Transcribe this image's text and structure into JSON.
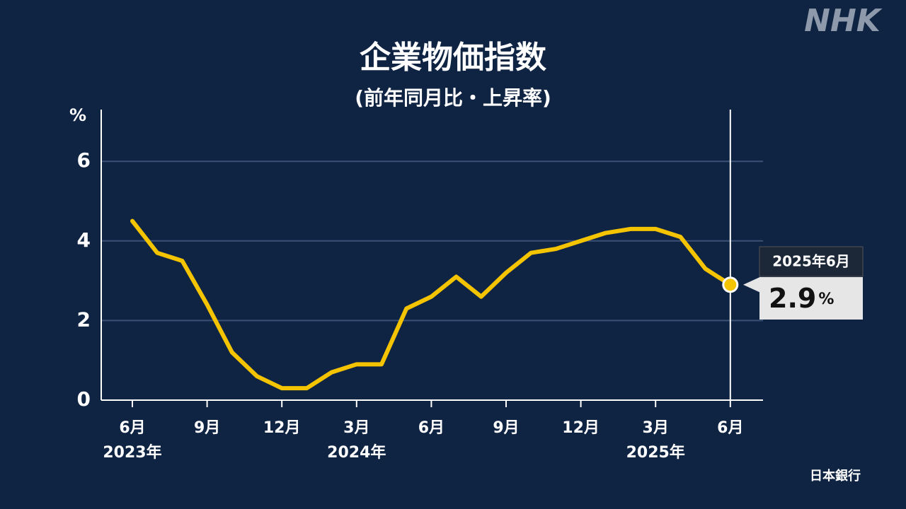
{
  "chart_data": {
    "type": "line",
    "title": "企業物価指数",
    "subtitle": "(前年同月比・上昇率)",
    "y_label": "%",
    "categories": [
      "6月",
      null,
      null,
      "9月",
      null,
      null,
      "12月",
      null,
      null,
      "3月",
      null,
      null,
      "6月",
      null,
      null,
      "9月",
      null,
      null,
      "12月",
      null,
      null,
      "3月",
      null,
      null,
      "6月"
    ],
    "year_labels": [
      "2023年",
      null,
      null,
      null,
      null,
      null,
      null,
      null,
      null,
      "2024年",
      null,
      null,
      null,
      null,
      null,
      null,
      null,
      null,
      null,
      null,
      null,
      "2025年",
      null,
      null,
      null
    ],
    "values": [
      4.5,
      3.7,
      3.5,
      2.4,
      1.2,
      0.6,
      0.3,
      0.3,
      0.7,
      0.9,
      0.9,
      2.3,
      2.6,
      3.1,
      2.6,
      3.2,
      3.7,
      3.8,
      4.0,
      4.2,
      4.3,
      4.3,
      4.1,
      3.3,
      2.9
    ],
    "color": "#f5c400",
    "ylim": [
      0,
      7.3
    ],
    "yticks": [
      0,
      2,
      4,
      6
    ],
    "grid": true,
    "callout": {
      "label": "2025年6月",
      "unit": "%"
    },
    "source": "日本銀行",
    "logo": "NHK"
  }
}
